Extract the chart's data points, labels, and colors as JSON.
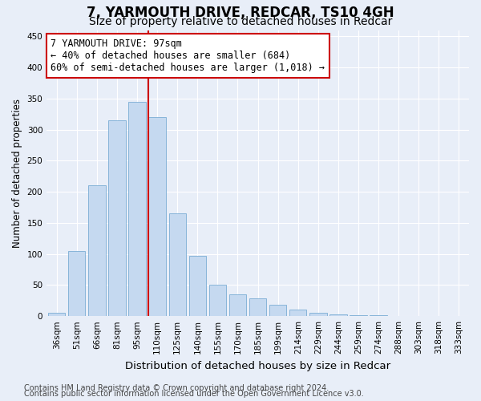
{
  "title": "7, YARMOUTH DRIVE, REDCAR, TS10 4GH",
  "subtitle": "Size of property relative to detached houses in Redcar",
  "xlabel": "Distribution of detached houses by size in Redcar",
  "ylabel": "Number of detached properties",
  "categories": [
    "36sqm",
    "51sqm",
    "66sqm",
    "81sqm",
    "95sqm",
    "110sqm",
    "125sqm",
    "140sqm",
    "155sqm",
    "170sqm",
    "185sqm",
    "199sqm",
    "214sqm",
    "229sqm",
    "244sqm",
    "259sqm",
    "274sqm",
    "288sqm",
    "303sqm",
    "318sqm",
    "333sqm"
  ],
  "values": [
    5,
    105,
    210,
    315,
    345,
    320,
    165,
    97,
    50,
    35,
    28,
    18,
    10,
    5,
    3,
    1,
    1,
    0,
    0,
    0,
    0
  ],
  "bar_color": "#c5d9f0",
  "bar_edgecolor": "#7badd4",
  "vline_x": 4.55,
  "vline_color": "#cc0000",
  "annotation_text": "7 YARMOUTH DRIVE: 97sqm\n← 40% of detached houses are smaller (684)\n60% of semi-detached houses are larger (1,018) →",
  "annotation_box_color": "#ffffff",
  "annotation_box_edgecolor": "#cc0000",
  "ylim": [
    0,
    460
  ],
  "yticks": [
    0,
    50,
    100,
    150,
    200,
    250,
    300,
    350,
    400,
    450
  ],
  "footer1": "Contains HM Land Registry data © Crown copyright and database right 2024.",
  "footer2": "Contains public sector information licensed under the Open Government Licence v3.0.",
  "background_color": "#e8eef8",
  "plot_background": "#e8eef8",
  "grid_color": "#ffffff",
  "title_fontsize": 12,
  "subtitle_fontsize": 10,
  "xlabel_fontsize": 9.5,
  "ylabel_fontsize": 8.5,
  "tick_fontsize": 7.5,
  "footer_fontsize": 7,
  "annotation_fontsize": 8.5
}
